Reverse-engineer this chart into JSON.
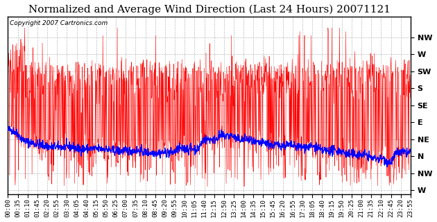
{
  "title": "Normalized and Average Wind Direction (Last 24 Hours) 20071121",
  "copyright": "Copyright 2007 Cartronics.com",
  "ytick_labels": [
    "NW",
    "W",
    "SW",
    "S",
    "SE",
    "E",
    "NE",
    "N",
    "NW",
    "W"
  ],
  "ytick_values": [
    315,
    270,
    225,
    180,
    135,
    90,
    45,
    0,
    -45,
    -90
  ],
  "ylim": [
    -100,
    370
  ],
  "xtick_labels": [
    "00:00",
    "00:35",
    "01:10",
    "01:45",
    "02:20",
    "02:55",
    "03:30",
    "04:05",
    "04:40",
    "05:15",
    "05:50",
    "06:25",
    "07:00",
    "07:35",
    "08:10",
    "08:45",
    "09:20",
    "09:55",
    "10:30",
    "11:05",
    "11:40",
    "12:15",
    "12:50",
    "13:25",
    "14:00",
    "14:35",
    "15:10",
    "15:45",
    "16:20",
    "16:55",
    "17:30",
    "18:05",
    "18:40",
    "19:15",
    "19:50",
    "20:25",
    "21:00",
    "21:35",
    "22:10",
    "22:45",
    "23:20",
    "23:55"
  ],
  "red_color": "#FF0000",
  "blue_color": "#0000FF",
  "background_color": "#FFFFFF",
  "grid_color": "#BBBBBB",
  "title_fontsize": 11,
  "copyright_fontsize": 6.5,
  "tick_fontsize": 6.5,
  "ytick_fontsize": 8,
  "num_points": 1440,
  "seed": 42
}
